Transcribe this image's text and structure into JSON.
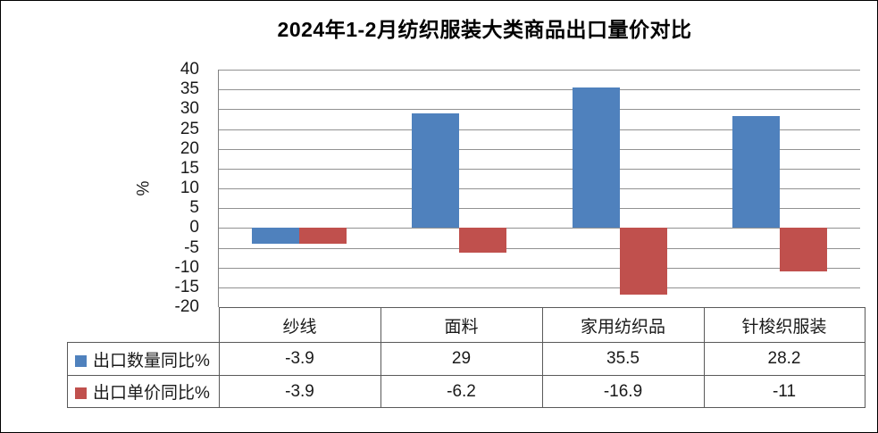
{
  "title": "2024年1-2月纺织服装大类商品出口量价对比",
  "chart_data": {
    "type": "bar",
    "title": "2024年1-2月纺织服装大类商品出口量价对比",
    "xlabel": "",
    "ylabel": "%",
    "ylim": [
      -20,
      40
    ],
    "ytick_step": 5,
    "grid": true,
    "legend_position": "data-table-left",
    "categories": [
      "纱线",
      "面料",
      "家用纺织品",
      "针梭织服装"
    ],
    "series": [
      {
        "name": "出口数量同比%",
        "color": "#4F81BD",
        "values": [
          -3.9,
          29,
          35.5,
          28.2
        ]
      },
      {
        "name": "出口单价同比%",
        "color": "#C0504D",
        "values": [
          -3.9,
          -6.2,
          -16.9,
          -11
        ]
      }
    ]
  },
  "colors": {
    "series_blue": "#4F81BD",
    "series_red": "#C0504D",
    "gridline": "#919191",
    "axis_line": "#808080",
    "table_border": "#595959",
    "text": "#1a1a1a",
    "background": "#ffffff"
  }
}
